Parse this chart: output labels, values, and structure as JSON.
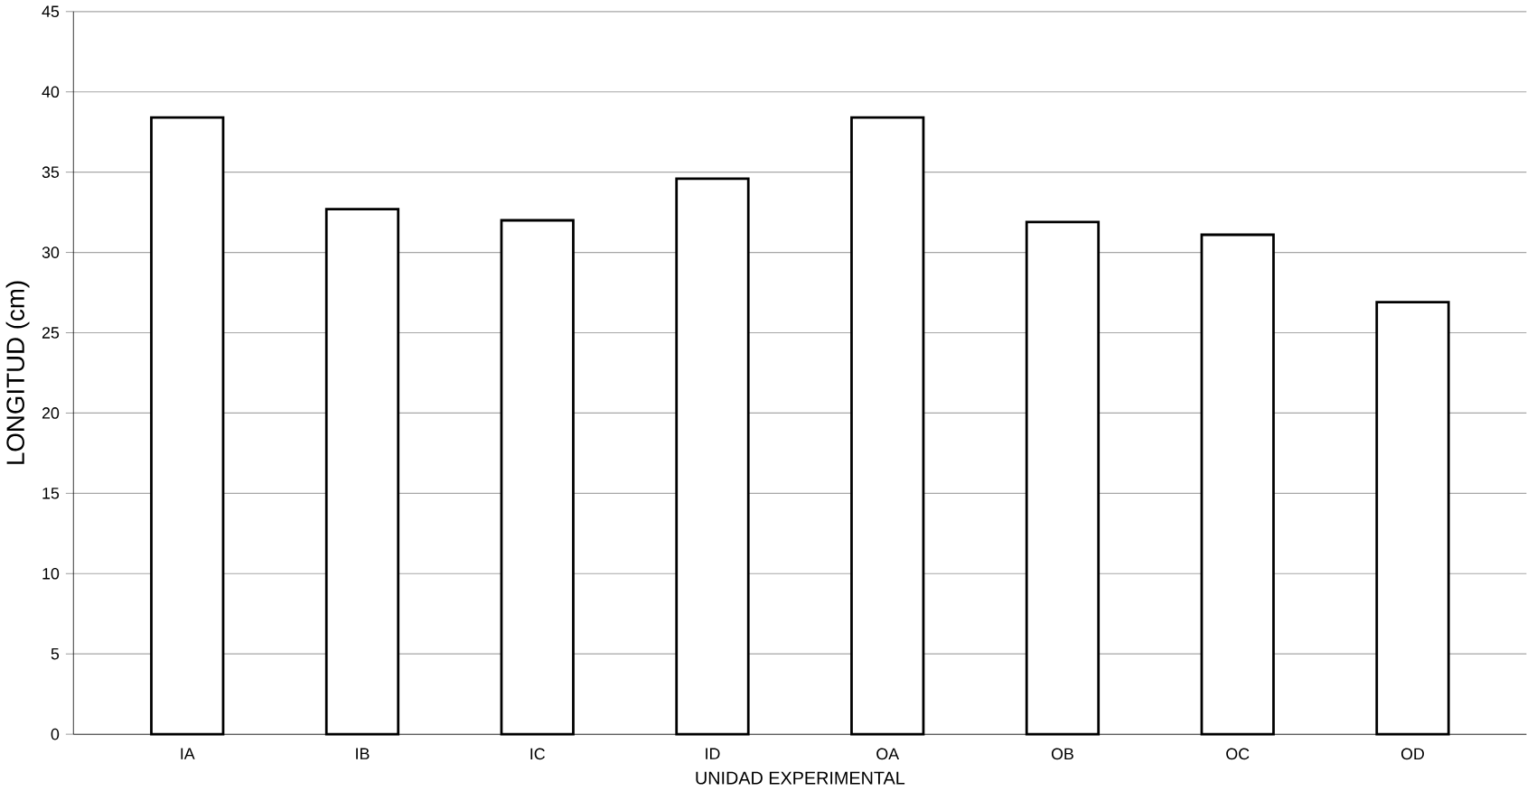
{
  "chart_data": {
    "type": "bar",
    "xlabel": "UNIDAD EXPERIMENTAL",
    "ylabel": "LONGITUD (cm)",
    "categories": [
      "IA",
      "IB",
      "IC",
      "ID",
      "OA",
      "OB",
      "OC",
      "OD"
    ],
    "values": [
      38.4,
      32.7,
      32.0,
      34.6,
      38.4,
      31.9,
      31.1,
      26.9
    ],
    "color": "#ffffff",
    "ylim": [
      0,
      45
    ],
    "yticks": [
      0,
      5,
      10,
      15,
      20,
      25,
      30,
      35,
      40,
      45
    ],
    "grid": "y"
  }
}
